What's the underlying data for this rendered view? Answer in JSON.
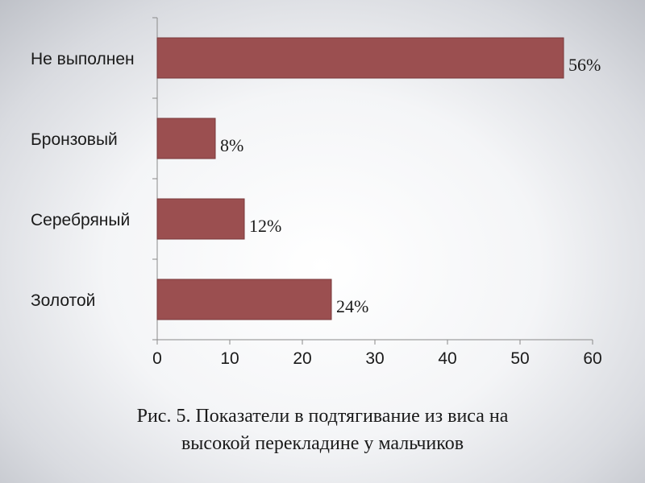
{
  "chart_data": {
    "type": "bar",
    "orientation": "horizontal",
    "categories": [
      "Золотой",
      "Серебряный",
      "Бронзовый",
      "Не выполнен"
    ],
    "values": [
      24,
      12,
      8,
      56
    ],
    "data_labels": [
      "24%",
      "12%",
      "8%",
      "56%"
    ],
    "xlim": [
      0,
      60
    ],
    "xticks": [
      0,
      10,
      20,
      30,
      40,
      50,
      60
    ],
    "grid": false,
    "legend": "none",
    "bar_color": "#9b4f50",
    "bar_edge_color": "#7a3a3b"
  },
  "caption": {
    "line1": "Рис. 5. Показатели в подтягивание  из виса на",
    "line2": "высокой перекладине  у мальчиков"
  }
}
